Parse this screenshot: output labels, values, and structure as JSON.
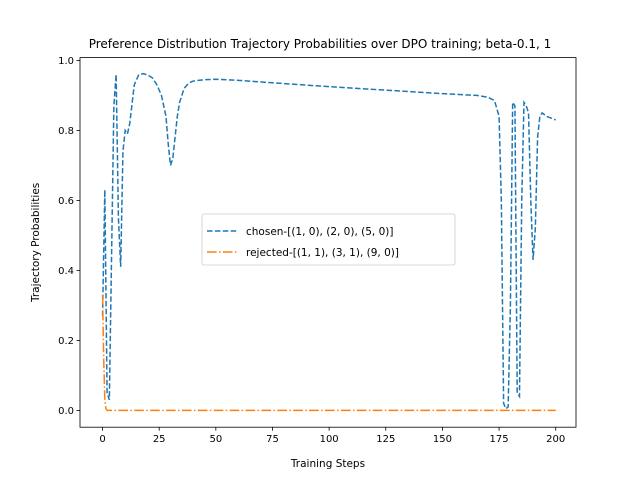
{
  "chart_data": {
    "type": "line",
    "title": "Preference Distribution Trajectory Probabilities over DPO training;  beta-0.1, 1",
    "xlabel": "Training Steps",
    "ylabel": "Trajectory Probabilities",
    "xlim": [
      -9.95,
      208.95
    ],
    "ylim": [
      -0.048,
      1.008
    ],
    "xticks": [
      0,
      25,
      50,
      75,
      100,
      125,
      150,
      175,
      200
    ],
    "xtick_labels": [
      "0",
      "25",
      "50",
      "75",
      "100",
      "125",
      "150",
      "175",
      "200"
    ],
    "yticks": [
      0.0,
      0.2,
      0.4,
      0.6,
      0.8,
      1.0
    ],
    "ytick_labels": [
      "0.0",
      "0.2",
      "0.4",
      "0.6",
      "0.8",
      "1.0"
    ],
    "grid": false,
    "legend_position": "center",
    "series": [
      {
        "name": "chosen-[(1, 0), (2, 0), (5, 0)]",
        "color": "#1f77b4",
        "linestyle": "dashed",
        "x": [
          0,
          1,
          2,
          3,
          4,
          5,
          6,
          7,
          8,
          9,
          10,
          11,
          12,
          14,
          16,
          18,
          20,
          22,
          24,
          26,
          28,
          29,
          30,
          31,
          32,
          33,
          34,
          36,
          38,
          40,
          45,
          50,
          60,
          75,
          100,
          125,
          150,
          165,
          170,
          173,
          175,
          176,
          177,
          178,
          179,
          180,
          181,
          182,
          183,
          184,
          185,
          186,
          187,
          188,
          189,
          190,
          191,
          192,
          193,
          194,
          196,
          198,
          200
        ],
        "y": [
          0.27,
          0.63,
          0.05,
          0.03,
          0.45,
          0.87,
          0.96,
          0.55,
          0.41,
          0.74,
          0.8,
          0.79,
          0.82,
          0.93,
          0.96,
          0.962,
          0.958,
          0.95,
          0.93,
          0.9,
          0.84,
          0.76,
          0.7,
          0.72,
          0.78,
          0.84,
          0.88,
          0.92,
          0.935,
          0.941,
          0.945,
          0.946,
          0.943,
          0.936,
          0.925,
          0.915,
          0.905,
          0.9,
          0.895,
          0.885,
          0.84,
          0.6,
          0.02,
          0.005,
          0.01,
          0.3,
          0.88,
          0.87,
          0.05,
          0.04,
          0.6,
          0.88,
          0.87,
          0.85,
          0.6,
          0.43,
          0.52,
          0.78,
          0.84,
          0.85,
          0.84,
          0.835,
          0.83
        ]
      },
      {
        "name": "rejected-[(1, 1), (3, 1), (9, 0)]",
        "color": "#ff7f0e",
        "linestyle": "dashdot",
        "x": [
          0,
          0.5,
          1,
          1.5,
          2,
          5,
          10,
          25,
          50,
          100,
          150,
          175,
          200
        ],
        "y": [
          0.33,
          0.15,
          0.03,
          0.005,
          0.0,
          0.0,
          0.0,
          0.0,
          0.0,
          0.0,
          0.0,
          0.0,
          0.0
        ]
      }
    ]
  }
}
